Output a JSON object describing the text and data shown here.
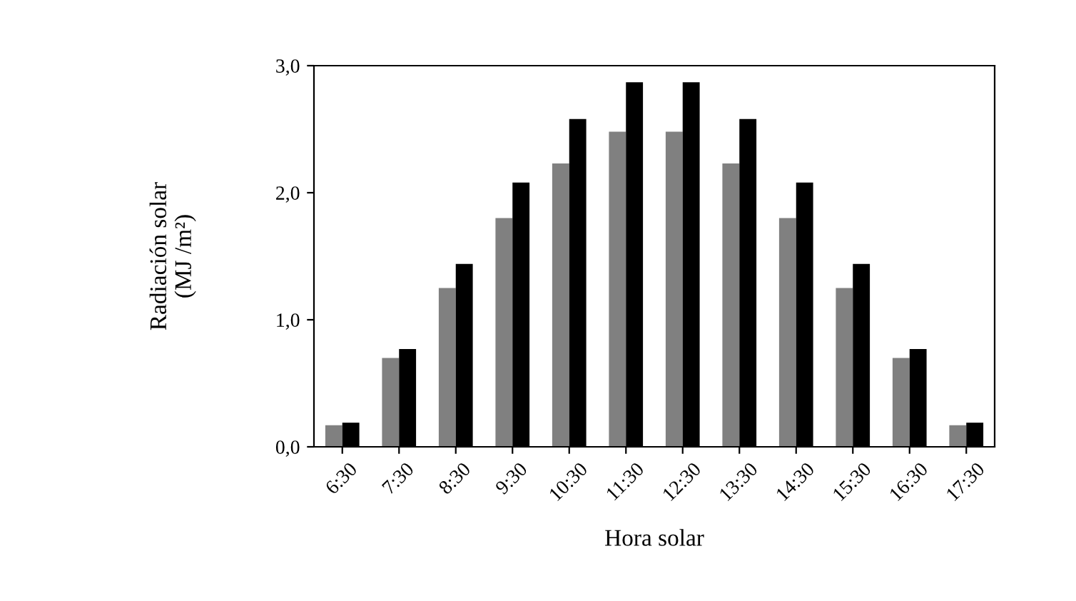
{
  "chart_data": {
    "type": "bar",
    "xlabel": "Hora solar",
    "ylabel": "Radiación solar\n(MJ /m²)",
    "categories": [
      "6:30",
      "7:30",
      "8:30",
      "9:30",
      "10:30",
      "11:30",
      "12:30",
      "13:30",
      "14:30",
      "15:30",
      "16:30",
      "17:30"
    ],
    "series": [
      {
        "color": "#808080",
        "values": [
          0.17,
          0.7,
          1.25,
          1.8,
          2.23,
          2.48,
          2.48,
          2.23,
          1.8,
          1.25,
          0.7,
          0.17
        ]
      },
      {
        "color": "#000000",
        "values": [
          0.19,
          0.77,
          1.44,
          2.08,
          2.58,
          2.87,
          2.87,
          2.58,
          2.08,
          1.44,
          0.77,
          0.19
        ]
      }
    ],
    "ylim": [
      0,
      3
    ],
    "yticks": [
      {
        "value": 0,
        "label": "0,0"
      },
      {
        "value": 1,
        "label": "1,0"
      },
      {
        "value": 2,
        "label": "2,0"
      },
      {
        "value": 3,
        "label": "3,0"
      }
    ],
    "grid": false,
    "legend": false
  }
}
